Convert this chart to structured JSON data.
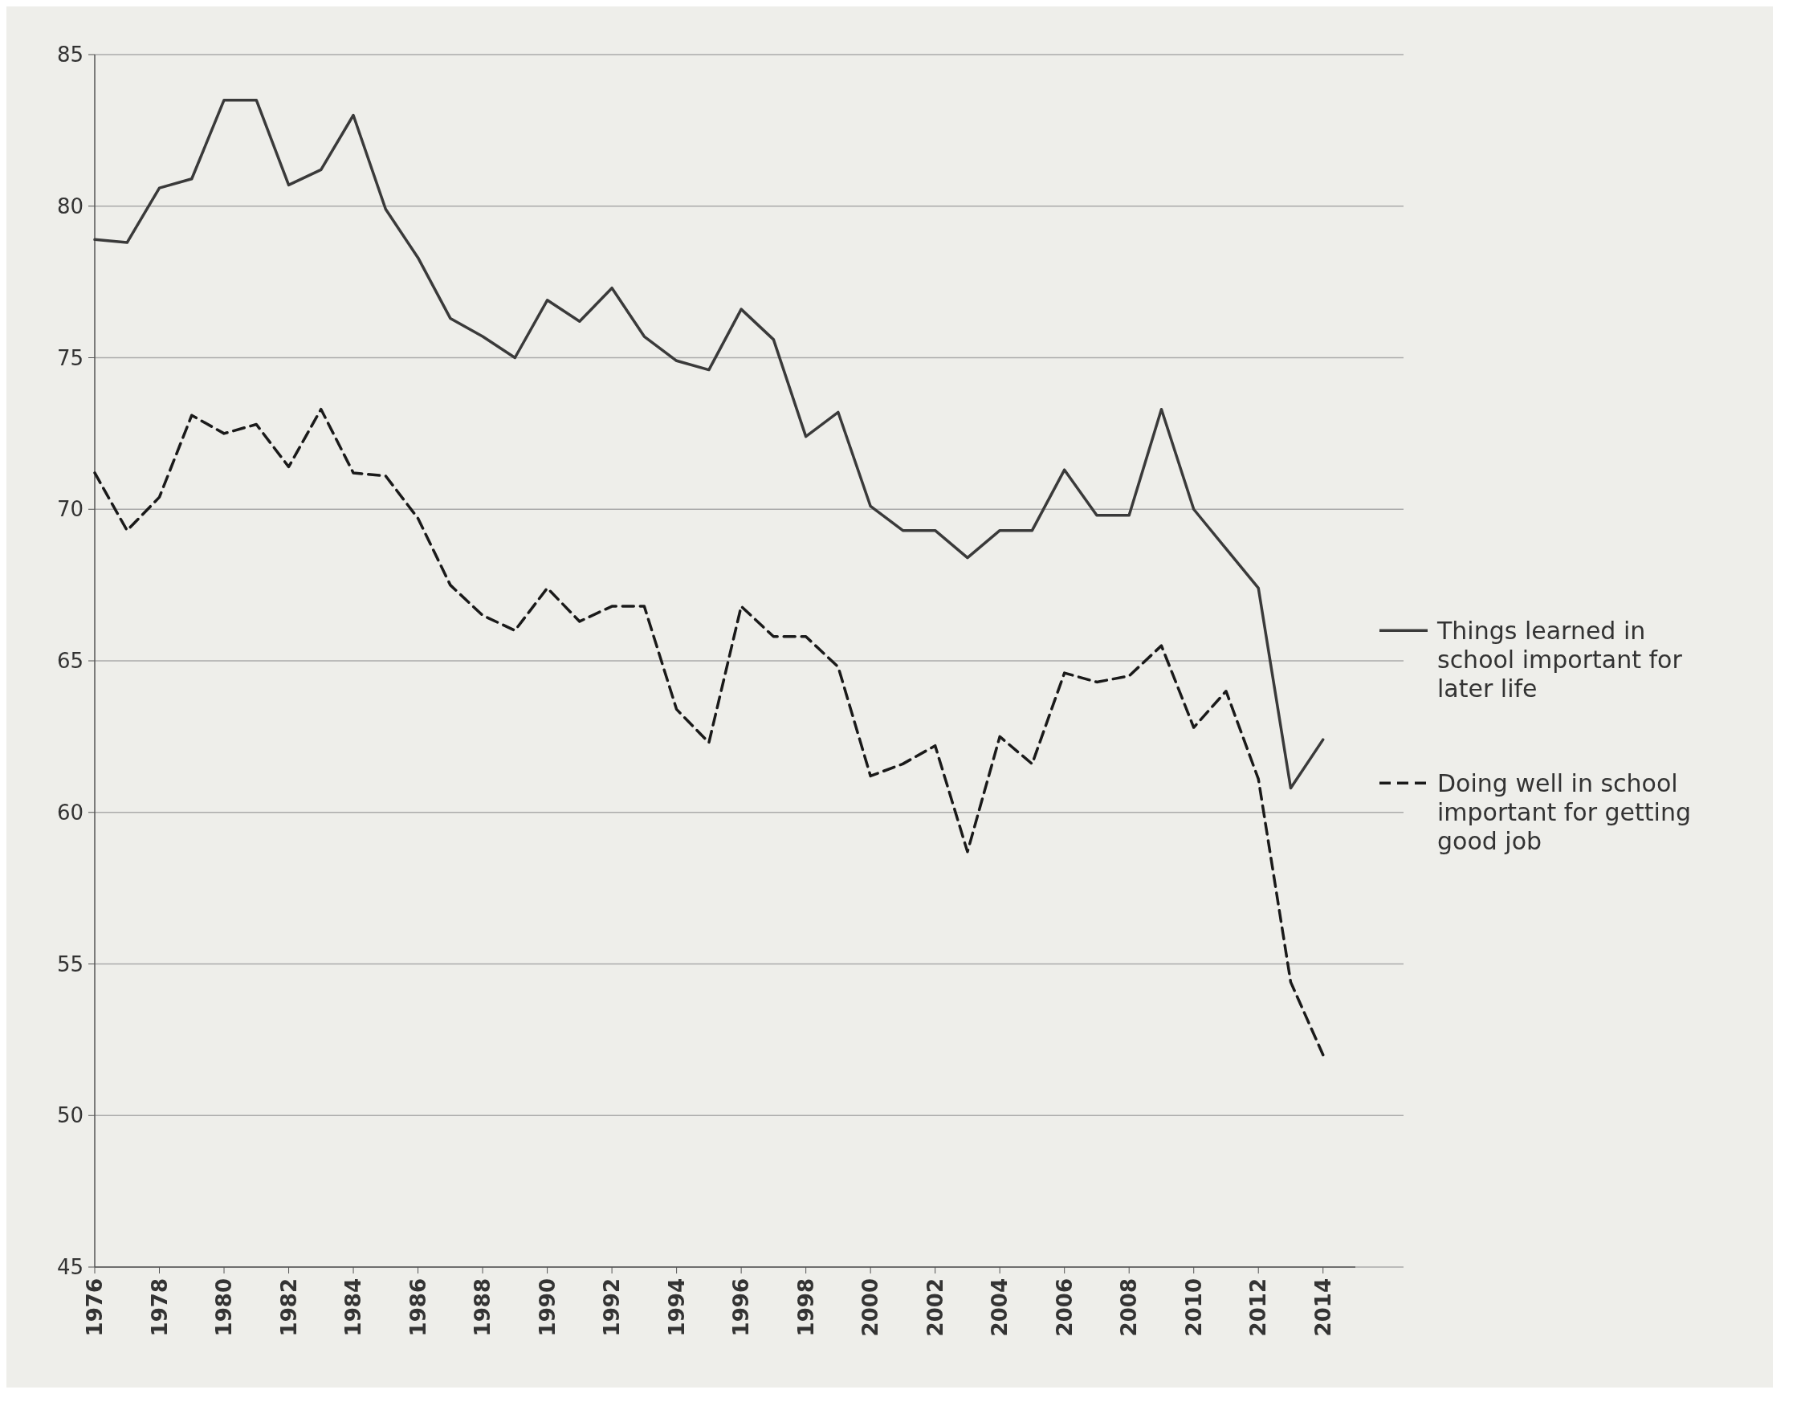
{
  "chart_data": {
    "type": "line",
    "x": [
      1976,
      1977,
      1978,
      1979,
      1980,
      1981,
      1982,
      1983,
      1984,
      1985,
      1986,
      1987,
      1988,
      1989,
      1990,
      1991,
      1992,
      1993,
      1994,
      1995,
      1996,
      1997,
      1998,
      1999,
      2000,
      2001,
      2002,
      2003,
      2004,
      2005,
      2006,
      2007,
      2008,
      2009,
      2010,
      2011,
      2012,
      2013,
      2014
    ],
    "series": [
      {
        "name": "Things learned in school important for later life",
        "color": "#3a3a3a",
        "line_style": "solid",
        "values": [
          78.9,
          78.8,
          80.6,
          80.9,
          83.5,
          83.5,
          80.7,
          81.2,
          83.0,
          79.9,
          78.3,
          76.3,
          75.7,
          75.0,
          76.9,
          76.2,
          77.3,
          75.7,
          74.9,
          74.6,
          76.6,
          75.6,
          72.4,
          73.2,
          70.1,
          69.3,
          69.3,
          68.4,
          69.3,
          69.3,
          71.3,
          69.8,
          69.8,
          73.3,
          70.0,
          68.7,
          67.4,
          60.8,
          62.4
        ]
      },
      {
        "name": "Doing well in school important for getting good job",
        "color": "#1a1a1a",
        "line_style": "dashed",
        "values": [
          71.2,
          69.3,
          70.4,
          73.1,
          72.5,
          72.8,
          71.4,
          73.3,
          71.2,
          71.1,
          69.7,
          67.5,
          66.5,
          66.0,
          67.4,
          66.3,
          66.8,
          66.8,
          63.4,
          62.3,
          66.8,
          65.8,
          65.8,
          64.8,
          61.2,
          61.6,
          62.2,
          58.7,
          62.5,
          61.6,
          64.6,
          64.3,
          64.5,
          65.5,
          62.8,
          64.0,
          61.1,
          54.4,
          52.0
        ]
      }
    ],
    "xlim": [
      1976,
      2015
    ],
    "xticks": [
      1976,
      1978,
      1980,
      1982,
      1984,
      1986,
      1988,
      1990,
      1992,
      1994,
      1996,
      1998,
      2000,
      2002,
      2004,
      2006,
      2008,
      2010,
      2012,
      2014
    ],
    "ylim": [
      45,
      85
    ],
    "yticks": [
      45,
      50,
      55,
      60,
      65,
      70,
      75,
      80,
      85
    ],
    "grid": "y",
    "legend": "right",
    "marker": "none"
  }
}
